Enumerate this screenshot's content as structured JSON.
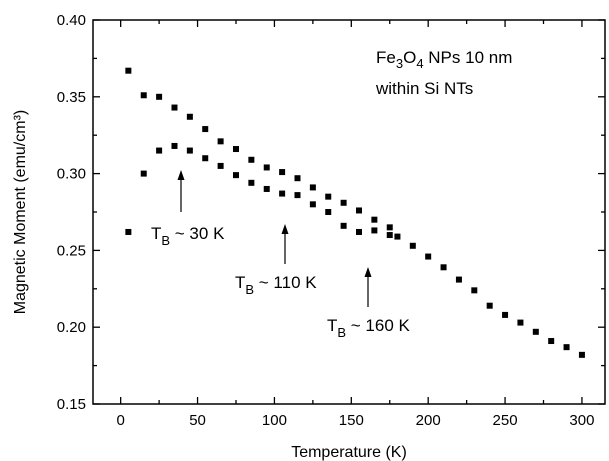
{
  "chart_data": {
    "type": "scatter",
    "title": "",
    "xlabel": "Temperature (K)",
    "ylabel": "Magnetic Moment (emu/cm³)",
    "xlim": [
      -18,
      315
    ],
    "ylim": [
      0.15,
      0.4
    ],
    "xticks": [
      0,
      50,
      100,
      150,
      200,
      250,
      300
    ],
    "yticks": [
      0.15,
      0.2,
      0.25,
      0.3,
      0.35,
      0.4
    ],
    "xtick_labels": [
      "0",
      "50",
      "100",
      "150",
      "200",
      "250",
      "300"
    ],
    "ytick_labels": [
      "0.15",
      "0.20",
      "0.25",
      "0.30",
      "0.35",
      "0.40"
    ],
    "grid": false,
    "legend": null,
    "marker_color": "#000000",
    "series": [
      {
        "x": [
          5,
          15,
          25,
          35,
          45,
          55,
          65,
          75,
          85,
          95,
          105,
          115,
          125,
          135,
          145,
          155,
          165,
          175
        ],
        "y": [
          0.367,
          0.351,
          0.35,
          0.343,
          0.337,
          0.329,
          0.321,
          0.316,
          0.309,
          0.304,
          0.301,
          0.297,
          0.291,
          0.285,
          0.281,
          0.276,
          0.27,
          0.265
        ]
      },
      {
        "x": [
          5,
          15,
          25,
          35,
          45,
          55,
          65,
          75,
          85,
          95,
          105,
          115,
          125,
          135,
          145,
          155,
          165,
          175,
          180,
          190,
          200,
          210,
          220,
          230,
          240,
          250,
          260,
          270,
          280,
          290,
          300
        ],
        "y": [
          0.262,
          0.3,
          0.315,
          0.318,
          0.315,
          0.31,
          0.305,
          0.299,
          0.294,
          0.29,
          0.287,
          0.286,
          0.28,
          0.275,
          0.266,
          0.262,
          0.263,
          0.26,
          0.259,
          0.253,
          0.246,
          0.239,
          0.231,
          0.224,
          0.214,
          0.208,
          0.203,
          0.197,
          0.191,
          0.187,
          0.182
        ]
      }
    ],
    "annotations": [
      {
        "main": "Fe",
        "sub1": "3",
        "mid": "O",
        "sub2": "4",
        "rest": " NPs 10 nm"
      },
      {
        "text": "within Si NTs"
      },
      {
        "main": "T",
        "sub": "B",
        "rest": " ~ 30 K",
        "arrow_x": 35
      },
      {
        "main": "T",
        "sub": "B",
        "rest": " ~ 110 K",
        "arrow_x": 105
      },
      {
        "main": "T",
        "sub": "B",
        "rest": " ~ 160 K",
        "arrow_x": 162
      }
    ]
  }
}
